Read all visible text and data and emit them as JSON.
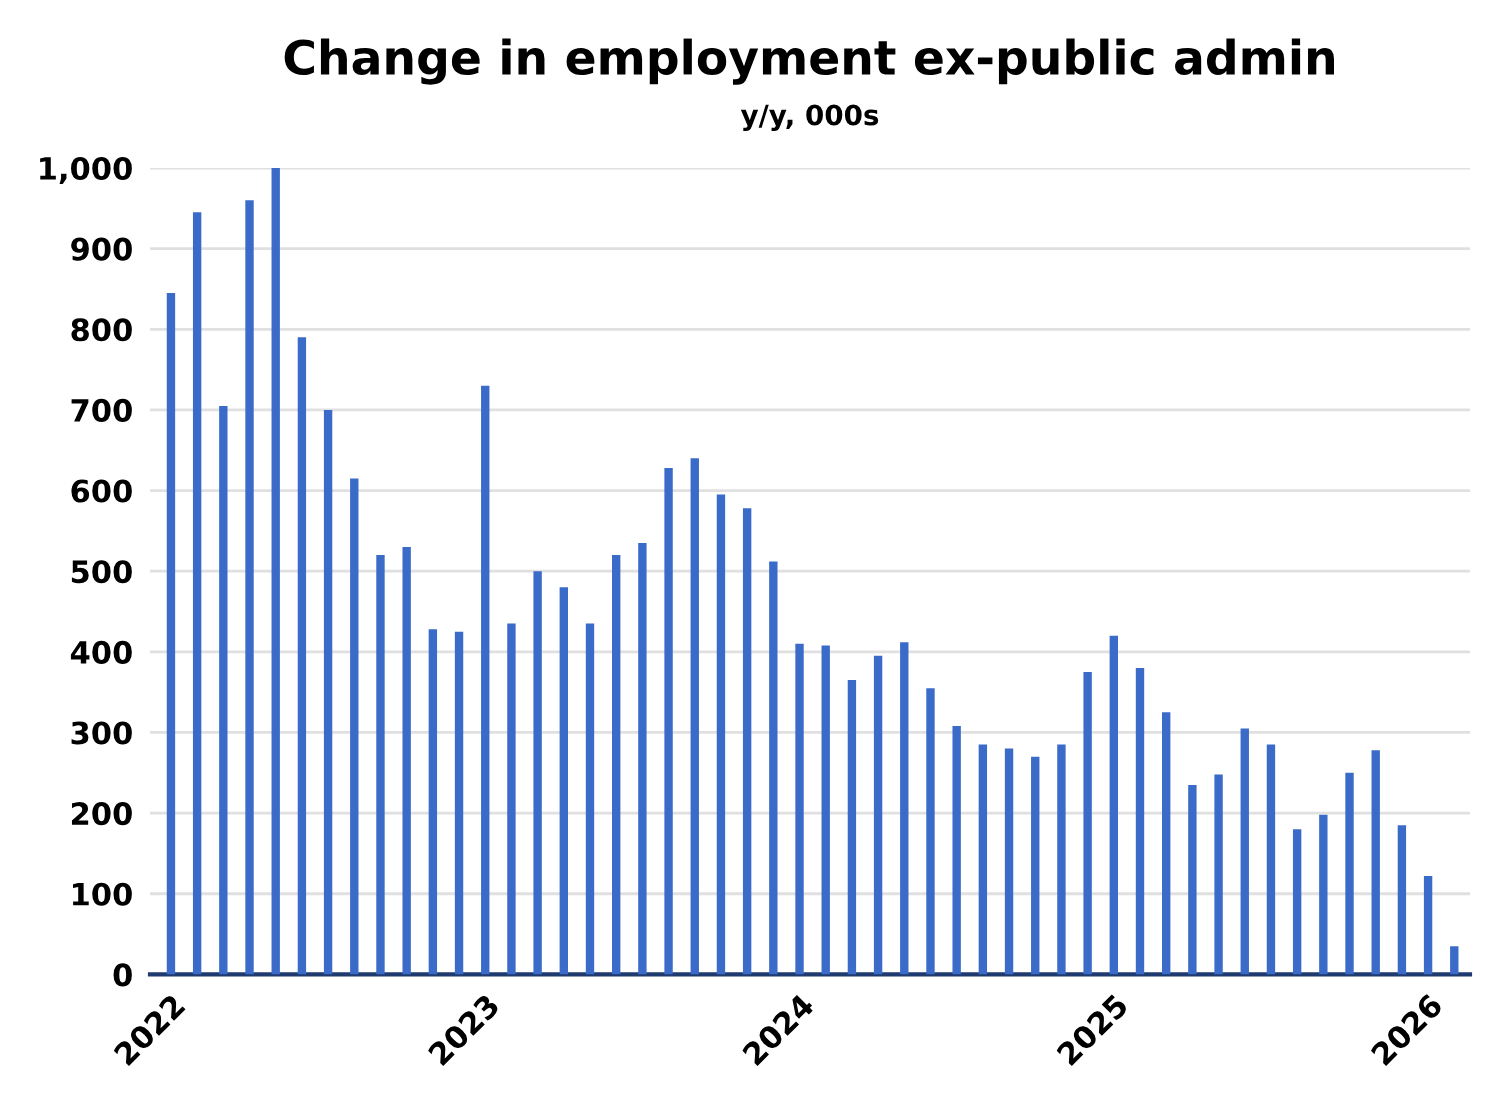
{
  "chart_data": {
    "type": "bar",
    "title": "Change in employment ex-public admin",
    "subtitle": "y/y, 000s",
    "categories": [
      "2022",
      null,
      null,
      null,
      null,
      null,
      null,
      null,
      null,
      null,
      null,
      null,
      "2023",
      null,
      null,
      null,
      null,
      null,
      null,
      null,
      null,
      null,
      null,
      null,
      "2024",
      null,
      null,
      null,
      null,
      null,
      null,
      null,
      null,
      null,
      null,
      null,
      "2025",
      null,
      null,
      null,
      null,
      null,
      null,
      null,
      null,
      null,
      null,
      null,
      "2026",
      null
    ],
    "values": [
      845,
      945,
      705,
      960,
      1000,
      790,
      700,
      615,
      520,
      530,
      428,
      425,
      730,
      435,
      500,
      480,
      435,
      520,
      535,
      628,
      640,
      595,
      578,
      512,
      410,
      408,
      365,
      395,
      412,
      355,
      308,
      285,
      280,
      270,
      285,
      375,
      420,
      380,
      325,
      235,
      248,
      305,
      285,
      180,
      198,
      250,
      278,
      185,
      122,
      35
    ],
    "color": "#3a6bc9",
    "ylim": [
      0,
      1000
    ],
    "yticks": [
      0,
      100,
      200,
      300,
      400,
      500,
      600,
      700,
      800,
      900,
      {
        "value": 1000,
        "label": "1,000"
      }
    ],
    "grid": "y"
  }
}
